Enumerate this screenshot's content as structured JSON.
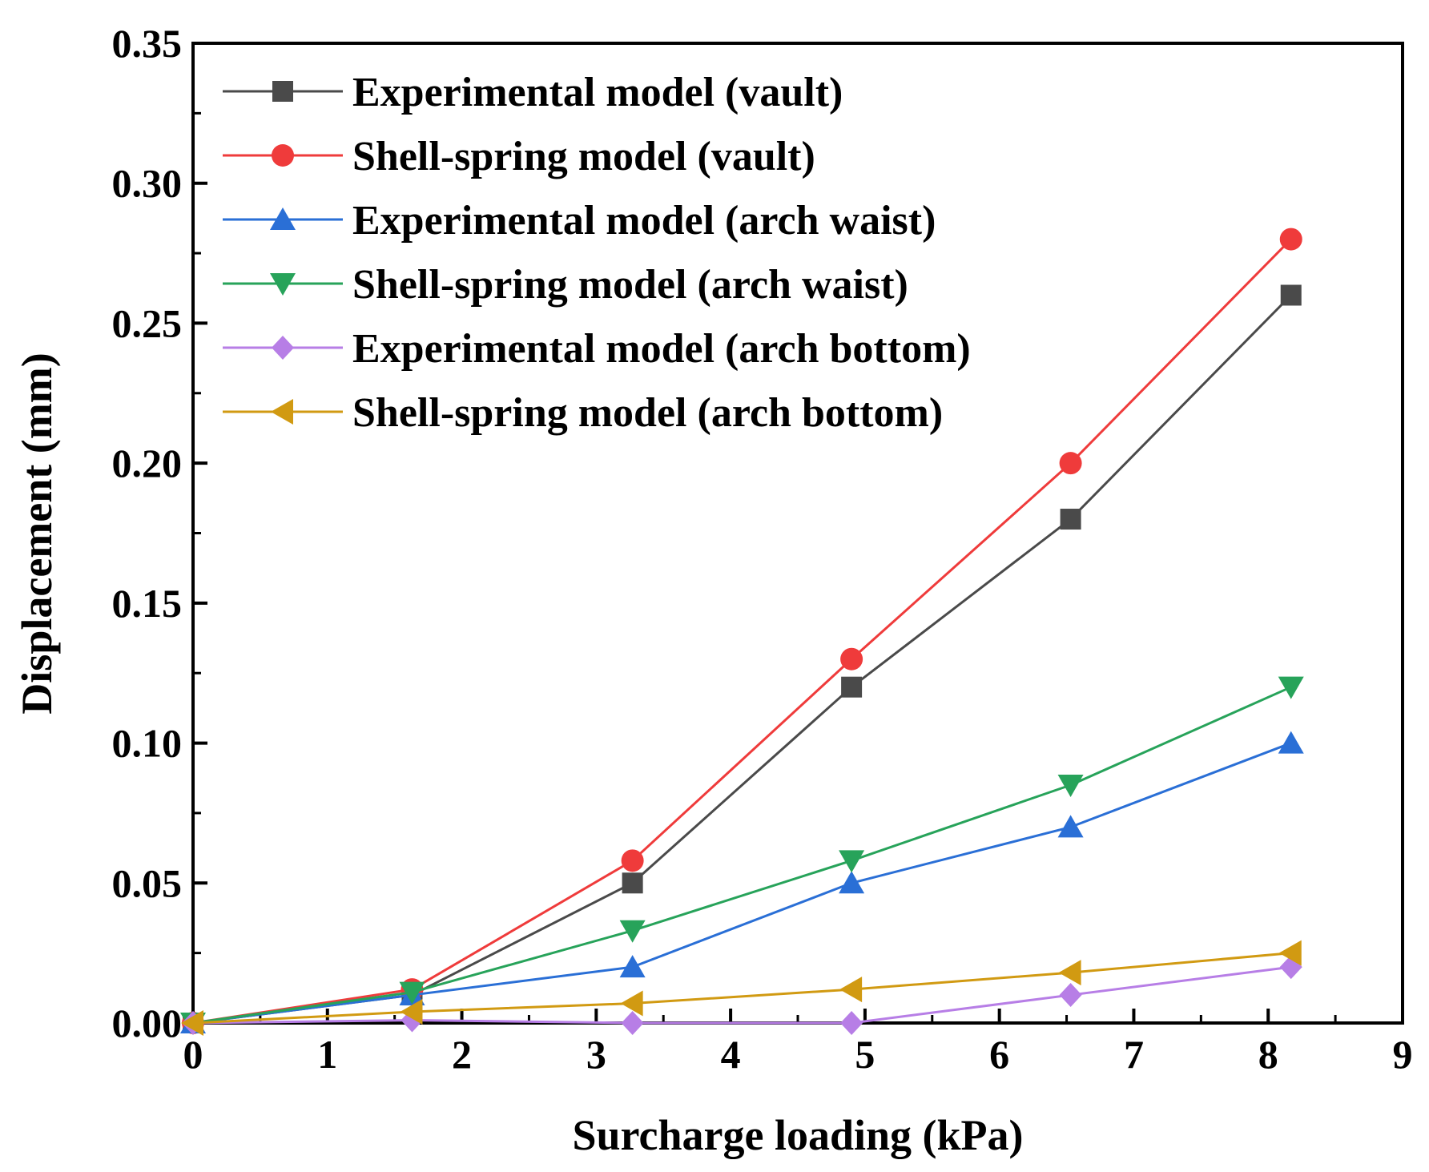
{
  "chart_data": {
    "type": "line",
    "title": "",
    "xlabel": "Surcharge loading (kPa)",
    "ylabel": "Displacement (mm)",
    "xlim": [
      0,
      9
    ],
    "ylim": [
      0,
      0.35
    ],
    "x_ticks": [
      0,
      1,
      2,
      3,
      4,
      5,
      6,
      7,
      8,
      9
    ],
    "x_tick_labels": [
      "0",
      "1",
      "2",
      "3",
      "4",
      "5",
      "6",
      "7",
      "8",
      "9"
    ],
    "y_ticks": [
      0,
      0.05,
      0.1,
      0.15,
      0.2,
      0.25,
      0.3,
      0.35
    ],
    "y_tick_labels": [
      "0.00",
      "0.05",
      "0.10",
      "0.15",
      "0.20",
      "0.25",
      "0.30",
      "0.35"
    ],
    "grid": false,
    "legend_position": "top-left",
    "x": [
      0,
      1.63,
      3.27,
      4.9,
      6.53,
      8.17
    ],
    "series": [
      {
        "name": "Experimental model (vault)",
        "marker": "square",
        "color": "#4a4a4a",
        "values": [
          0,
          0.01,
          0.05,
          0.12,
          0.18,
          0.26
        ]
      },
      {
        "name": "Shell-spring model (vault)",
        "marker": "circle",
        "color": "#ef3b3b",
        "values": [
          0,
          0.012,
          0.058,
          0.13,
          0.2,
          0.28
        ]
      },
      {
        "name": "Experimental model (arch waist)",
        "marker": "triangle-up",
        "color": "#2a6fd6",
        "values": [
          0,
          0.01,
          0.02,
          0.05,
          0.07,
          0.1
        ]
      },
      {
        "name": "Shell-spring model (arch waist)",
        "marker": "triangle-down",
        "color": "#27a35a",
        "values": [
          0,
          0.011,
          0.033,
          0.058,
          0.085,
          0.12
        ]
      },
      {
        "name": "Experimental model (arch bottom)",
        "marker": "diamond",
        "color": "#b77ee6",
        "values": [
          0,
          0.001,
          0.0,
          0.0,
          0.01,
          0.02
        ]
      },
      {
        "name": "Shell-spring model (arch bottom)",
        "marker": "triangle-left",
        "color": "#d19a12",
        "values": [
          0,
          0.004,
          0.007,
          0.012,
          0.018,
          0.025
        ]
      }
    ]
  }
}
